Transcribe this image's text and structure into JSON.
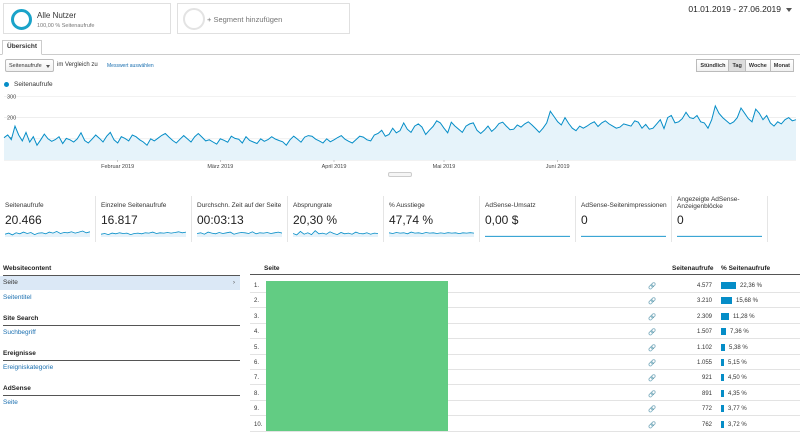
{
  "segments": {
    "active": {
      "title": "Alle Nutzer",
      "subtitle": "100,00 % Seitenaufrufe"
    },
    "add_label": "+ Segment hinzufügen"
  },
  "date_range": "01.01.2019 - 27.06.2019",
  "tabs": [
    {
      "label": "Übersicht"
    }
  ],
  "controls": {
    "metric_select": "Seitenaufrufe",
    "compare_label": "im Vergleich zu",
    "compare_link": "Messwert auswählen",
    "granularity": [
      "Stündlich",
      "Tag",
      "Woche",
      "Monat"
    ],
    "granularity_active": "Tag"
  },
  "chart_data": {
    "type": "area",
    "series": [
      {
        "name": "Seitenaufrufe",
        "color": "#058dc7",
        "values": [
          105,
          118,
          96,
          160,
          118,
          90,
          130,
          85,
          110,
          70,
          95,
          122,
          100,
          88,
          96,
          110,
          78,
          102,
          95,
          85,
          100,
          128,
          92,
          80,
          98,
          118,
          103,
          85,
          112,
          130,
          95,
          80,
          110,
          102,
          90,
          118,
          110,
          95,
          85,
          70,
          100,
          90,
          103,
          116,
          125,
          108,
          92,
          80,
          98,
          115,
          100,
          85,
          110,
          125,
          108,
          90,
          95,
          85,
          75,
          100,
          93,
          84,
          112,
          102,
          98,
          80,
          110,
          92,
          85,
          78,
          100,
          88,
          96,
          110,
          99,
          92,
          86,
          70,
          95,
          112,
          99,
          84,
          108,
          115,
          112,
          98,
          90,
          80,
          100,
          86,
          95,
          106,
          115,
          98,
          88,
          80,
          96,
          112,
          108,
          95,
          90,
          118,
          125,
          140,
          112,
          120,
          150,
          128,
          138,
          175,
          145,
          130,
          160,
          170,
          155,
          120,
          140,
          158,
          185,
          175,
          150,
          128,
          178,
          160,
          145,
          130,
          160,
          170,
          175,
          140,
          125,
          140,
          160,
          135,
          150,
          172,
          178,
          160,
          143,
          145,
          165,
          155,
          170,
          180,
          165,
          148,
          130,
          150,
          175,
          230,
          205,
          180,
          165,
          200,
          172,
          150,
          138,
          160,
          150,
          160,
          172,
          180,
          158,
          175,
          185,
          170,
          160,
          150,
          155,
          170,
          165,
          160,
          185,
          178,
          150,
          168,
          145,
          150,
          170,
          190,
          148,
          200,
          210,
          175,
          180,
          195,
          225,
          200,
          195,
          210,
          180,
          175,
          150,
          190,
          255,
          220,
          200,
          185,
          170,
          180,
          200,
          245,
          220,
          195,
          180,
          240,
          220,
          190,
          210,
          175,
          160,
          180,
          170,
          190,
          200,
          185,
          190
        ]
      }
    ],
    "y_ticks": [
      100,
      200,
      300
    ],
    "ylim": [
      0,
      330
    ],
    "x_labels": [
      "Februar 2019",
      "März 2019",
      "April 2019",
      "Mai 2019",
      "Juni 2019"
    ],
    "x_label_index": [
      31,
      59,
      90,
      120,
      151
    ]
  },
  "scorecards": [
    {
      "label": "Seitenaufrufe",
      "value": "20.466",
      "spark": [
        40,
        55,
        30,
        60,
        45,
        70,
        50,
        65,
        35,
        55,
        60,
        45,
        70,
        55,
        80,
        50,
        65,
        60,
        75,
        55,
        70,
        85,
        60,
        75
      ]
    },
    {
      "label": "Einzelne Seitenaufrufe",
      "value": "16.817",
      "spark": [
        40,
        50,
        35,
        55,
        45,
        60,
        50,
        55,
        35,
        50,
        55,
        45,
        60,
        55,
        70,
        50,
        60,
        55,
        65,
        55,
        65,
        75,
        60,
        70
      ]
    },
    {
      "label": "Durchschn. Zeit auf der Seite",
      "value": "00:03:13",
      "spark": [
        50,
        60,
        40,
        70,
        55,
        45,
        65,
        50,
        60,
        70,
        40,
        55,
        65,
        60,
        50,
        75,
        45,
        60,
        55,
        65,
        50,
        60,
        70,
        55
      ]
    },
    {
      "label": "Absprungrate",
      "value": "20,30 %",
      "spark": [
        50,
        30,
        80,
        40,
        60,
        35,
        90,
        45,
        55,
        40,
        75,
        50,
        35,
        65,
        45,
        55,
        40,
        70,
        50,
        45,
        60,
        40,
        55,
        50
      ]
    },
    {
      "label": "% Ausstiege",
      "value": "47,74 %",
      "spark": [
        60,
        50,
        65,
        55,
        60,
        45,
        70,
        55,
        60,
        50,
        65,
        55,
        60,
        50,
        58,
        52,
        62,
        55,
        60,
        48,
        60,
        55,
        62,
        55
      ]
    },
    {
      "label": "AdSense-Umsatz",
      "value": "0,00 $",
      "spark": [
        10,
        10,
        10,
        10,
        10,
        10,
        10,
        10,
        10,
        10,
        10,
        10,
        10,
        10,
        10,
        10,
        10,
        10,
        10,
        10,
        10,
        10,
        10,
        10
      ]
    },
    {
      "label": "AdSense-Seitenimpressionen",
      "value": "0",
      "spark": [
        10,
        10,
        10,
        10,
        10,
        10,
        10,
        10,
        10,
        10,
        10,
        10,
        10,
        10,
        10,
        10,
        10,
        10,
        10,
        10,
        10,
        10,
        10,
        10
      ]
    },
    {
      "label": "Angezeigte AdSense-Anzeigenblöcke",
      "value": "0",
      "spark": [
        10,
        10,
        10,
        10,
        10,
        10,
        10,
        10,
        10,
        10,
        10,
        10,
        10,
        10,
        10,
        10,
        10,
        10,
        10,
        10,
        10,
        10,
        10,
        10
      ]
    }
  ],
  "leftnav": {
    "sections": [
      {
        "heading": "Websitecontent",
        "items": [
          "Seite",
          "Seitentitel"
        ]
      },
      {
        "heading": "Site Search",
        "items": [
          "Suchbegriff"
        ]
      },
      {
        "heading": "Ereignisse",
        "items": [
          "Ereigniskategorie"
        ]
      },
      {
        "heading": "AdSense",
        "items": [
          "Seite"
        ]
      }
    ],
    "active_arrow": "›"
  },
  "table": {
    "headers": {
      "page": "Seite",
      "views": "Seitenaufrufe",
      "pct": "% Seitenaufrufe"
    },
    "link_icon": "🔗",
    "rows": [
      {
        "rank": "1.",
        "views": "4.577",
        "pct": "22,36 %",
        "share": 0.2236
      },
      {
        "rank": "2.",
        "views": "3.210",
        "pct": "15,68 %",
        "share": 0.1568
      },
      {
        "rank": "3.",
        "views": "2.309",
        "pct": "11,28 %",
        "share": 0.1128
      },
      {
        "rank": "4.",
        "views": "1.507",
        "pct": "7,36 %",
        "share": 0.0736
      },
      {
        "rank": "5.",
        "views": "1.102",
        "pct": "5,38 %",
        "share": 0.0538
      },
      {
        "rank": "6.",
        "views": "1.055",
        "pct": "5,15 %",
        "share": 0.0515
      },
      {
        "rank": "7.",
        "views": "921",
        "pct": "4,50 %",
        "share": 0.045
      },
      {
        "rank": "8.",
        "views": "891",
        "pct": "4,35 %",
        "share": 0.0435
      },
      {
        "rank": "9.",
        "views": "772",
        "pct": "3,77 %",
        "share": 0.0377
      },
      {
        "rank": "10.",
        "views": "762",
        "pct": "3,72 %",
        "share": 0.0372
      }
    ]
  }
}
